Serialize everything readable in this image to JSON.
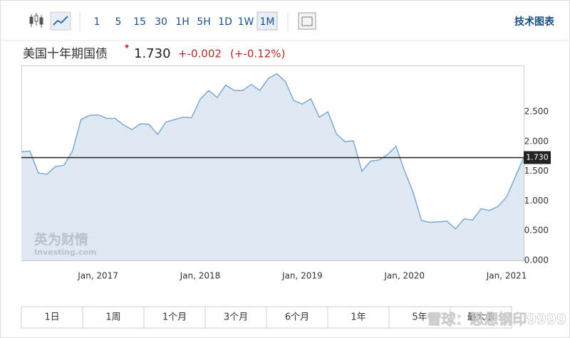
{
  "toolbar": {
    "intervals": [
      "1",
      "5",
      "15",
      "30",
      "1H",
      "5H",
      "1D",
      "1W",
      "1M"
    ],
    "selected": "1M",
    "right_link": "技术图表"
  },
  "header": {
    "name": "美国十年期国债",
    "price": "1.730",
    "change": "+-0.002",
    "change_percent": "(+-0.12%)"
  },
  "chart_data": {
    "type": "area",
    "color": "#7fa7cf",
    "fill": "#dfe9f3",
    "categories": [
      null,
      null,
      null,
      null,
      null,
      null,
      null,
      null,
      null,
      "Jan, 2017",
      null,
      null,
      null,
      null,
      null,
      null,
      null,
      null,
      null,
      null,
      null,
      "Jan, 2018",
      null,
      null,
      null,
      null,
      null,
      null,
      null,
      null,
      null,
      null,
      null,
      "Jan, 2019",
      null,
      null,
      null,
      null,
      null,
      null,
      null,
      null,
      null,
      null,
      null,
      "Jan, 2020",
      null,
      null,
      null,
      null,
      null,
      null,
      null,
      null,
      null,
      null,
      null,
      "Jan, 2021",
      null,
      null
    ],
    "values": [
      1.83,
      1.84,
      1.47,
      1.45,
      1.58,
      1.6,
      1.84,
      2.37,
      2.44,
      2.45,
      2.39,
      2.39,
      2.28,
      2.2,
      2.3,
      2.29,
      2.12,
      2.33,
      2.37,
      2.41,
      2.4,
      2.71,
      2.86,
      2.74,
      2.95,
      2.86,
      2.86,
      2.96,
      2.86,
      3.06,
      3.14,
      3.01,
      2.69,
      2.63,
      2.72,
      2.41,
      2.5,
      2.13,
      2.0,
      2.01,
      1.5,
      1.67,
      1.69,
      1.78,
      1.92,
      1.51,
      1.15,
      0.67,
      0.64,
      0.65,
      0.66,
      0.53,
      0.7,
      0.68,
      0.87,
      0.84,
      0.91,
      1.07,
      1.4,
      1.73
    ],
    "ylim": [
      0,
      3.28
    ],
    "yticks": [
      {
        "value": 0,
        "label": "0.000"
      },
      {
        "value": 0.5,
        "label": "0.500"
      },
      {
        "value": 1,
        "label": "1.000"
      },
      {
        "value": 1.5,
        "label": "1.500"
      },
      {
        "value": 2,
        "label": "2.000"
      },
      {
        "value": 2.5,
        "label": "2.500"
      }
    ],
    "grid": false,
    "reference_line": {
      "value": 1.73,
      "label": "1.730"
    }
  },
  "range_buttons": [
    "1日",
    "1周",
    "1个月",
    "3个月",
    "6个月",
    "1年",
    "5年",
    "最大值"
  ],
  "watermarks": [
    "英为财情",
    "Investing.com",
    "雪球：思想钢印9999"
  ]
}
